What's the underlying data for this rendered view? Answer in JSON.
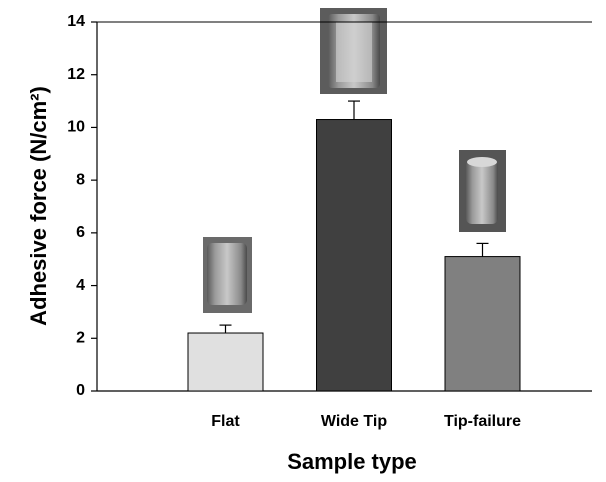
{
  "chart_data": {
    "type": "bar",
    "x_label": "Sample type",
    "y_label": "Adhesive force (N/cm²)",
    "categories": [
      "Flat",
      "Wide Tip",
      "Tip-failure"
    ],
    "values": [
      2.2,
      10.3,
      5.1
    ],
    "errors": [
      0.3,
      0.7,
      0.5
    ],
    "colors": [
      "#e0e0e0",
      "#404040",
      "#808080"
    ],
    "ylim": [
      0,
      14
    ],
    "yticks": [
      0,
      2,
      4,
      6,
      8,
      10,
      12,
      14
    ]
  }
}
